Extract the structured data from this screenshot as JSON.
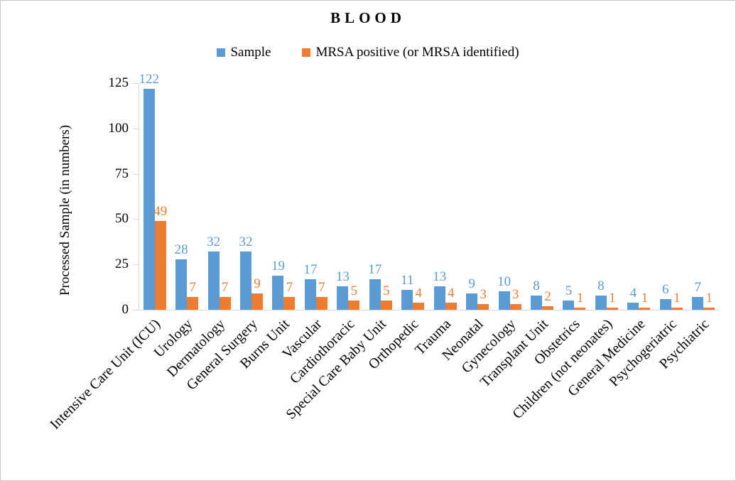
{
  "title": "BLOOD",
  "legend": {
    "items": [
      {
        "label": "Sample",
        "color": "#5B9BD5"
      },
      {
        "label": "MRSA positive (or MRSA identified)",
        "color": "#ED7D31"
      }
    ]
  },
  "y_axis": {
    "title": "Processed Sample (in numbers)"
  },
  "chart_data": {
    "type": "bar",
    "title": "BLOOD",
    "categories": [
      "Intensive Care Unit (ICU)",
      "Urology",
      "Dermatology",
      "General Surgery",
      "Burns Unit",
      "Vascular",
      "Cardiothoracic",
      "Special Care Baby Unit",
      "Orthopedic",
      "Trauma",
      "Neonatal",
      "Gynecology",
      "Transplant Unit",
      "Obstetrics",
      "Children (not neonates)",
      "General Medicine",
      "Psychogeriatric",
      "Psychiatric"
    ],
    "series": [
      {
        "name": "Sample",
        "color": "#5B9BD5",
        "values": [
          122,
          28,
          32,
          32,
          19,
          17,
          13,
          17,
          11,
          13,
          9,
          10,
          8,
          5,
          8,
          4,
          6,
          7
        ]
      },
      {
        "name": "MRSA positive (or MRSA identified)",
        "color": "#ED7D31",
        "values": [
          49,
          7,
          7,
          9,
          7,
          7,
          5,
          5,
          4,
          4,
          3,
          3,
          2,
          1,
          1,
          1,
          1,
          1
        ]
      }
    ],
    "xlabel": "",
    "ylabel": "Processed Sample (in numbers)",
    "ylim": [
      0,
      125
    ],
    "yticks": [
      0,
      25,
      50,
      75,
      100,
      125
    ],
    "grid": false,
    "legend_position": "top",
    "data_labels": "outside-end, colored same as series",
    "axis_color": "#d9d9d9"
  }
}
